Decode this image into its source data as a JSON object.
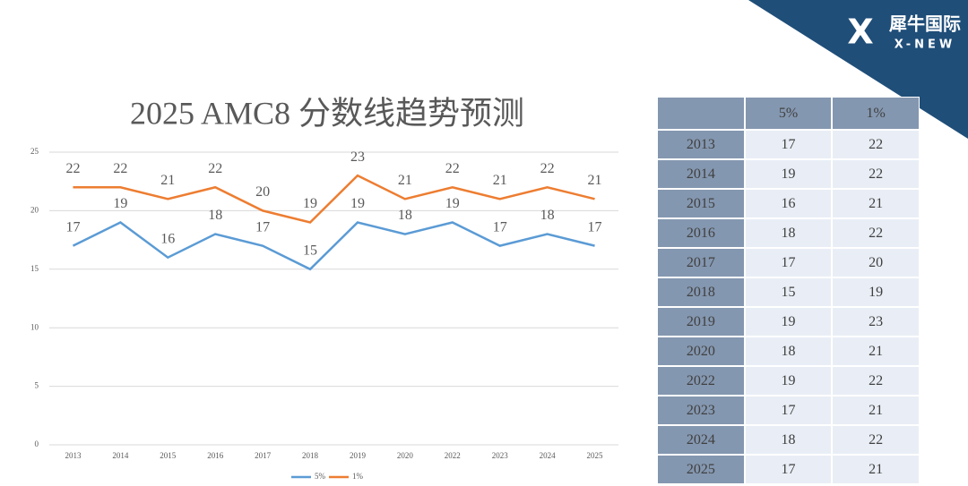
{
  "chart_data": {
    "type": "line",
    "title": "2025 AMC8 分数线趋势预测",
    "categories": [
      "2013",
      "2014",
      "2015",
      "2016",
      "2017",
      "2018",
      "2019",
      "2020",
      "2022",
      "2023",
      "2024",
      "2025"
    ],
    "series": [
      {
        "name": "5%",
        "color": "#5b9bd5",
        "values": [
          17,
          19,
          16,
          18,
          17,
          15,
          19,
          18,
          19,
          17,
          18,
          17
        ]
      },
      {
        "name": "1%",
        "color": "#ed7d31",
        "values": [
          22,
          22,
          21,
          22,
          20,
          19,
          23,
          21,
          22,
          21,
          22,
          21
        ]
      }
    ],
    "ylim": [
      0,
      25
    ],
    "yticks": [
      0,
      5,
      10,
      15,
      20,
      25
    ],
    "grid": true,
    "legend": "bottom"
  },
  "table": {
    "header": [
      "5%",
      "1%"
    ],
    "rows": [
      [
        "2013",
        17,
        22
      ],
      [
        "2014",
        19,
        22
      ],
      [
        "2015",
        16,
        21
      ],
      [
        "2016",
        18,
        22
      ],
      [
        "2017",
        17,
        20
      ],
      [
        "2018",
        15,
        19
      ],
      [
        "2019",
        19,
        23
      ],
      [
        "2020",
        18,
        21
      ],
      [
        "2022",
        19,
        22
      ],
      [
        "2023",
        17,
        21
      ],
      [
        "2024",
        18,
        22
      ],
      [
        "2025",
        17,
        21
      ]
    ]
  },
  "logo": {
    "name": "犀牛国际",
    "tagline": "X-NEW"
  }
}
